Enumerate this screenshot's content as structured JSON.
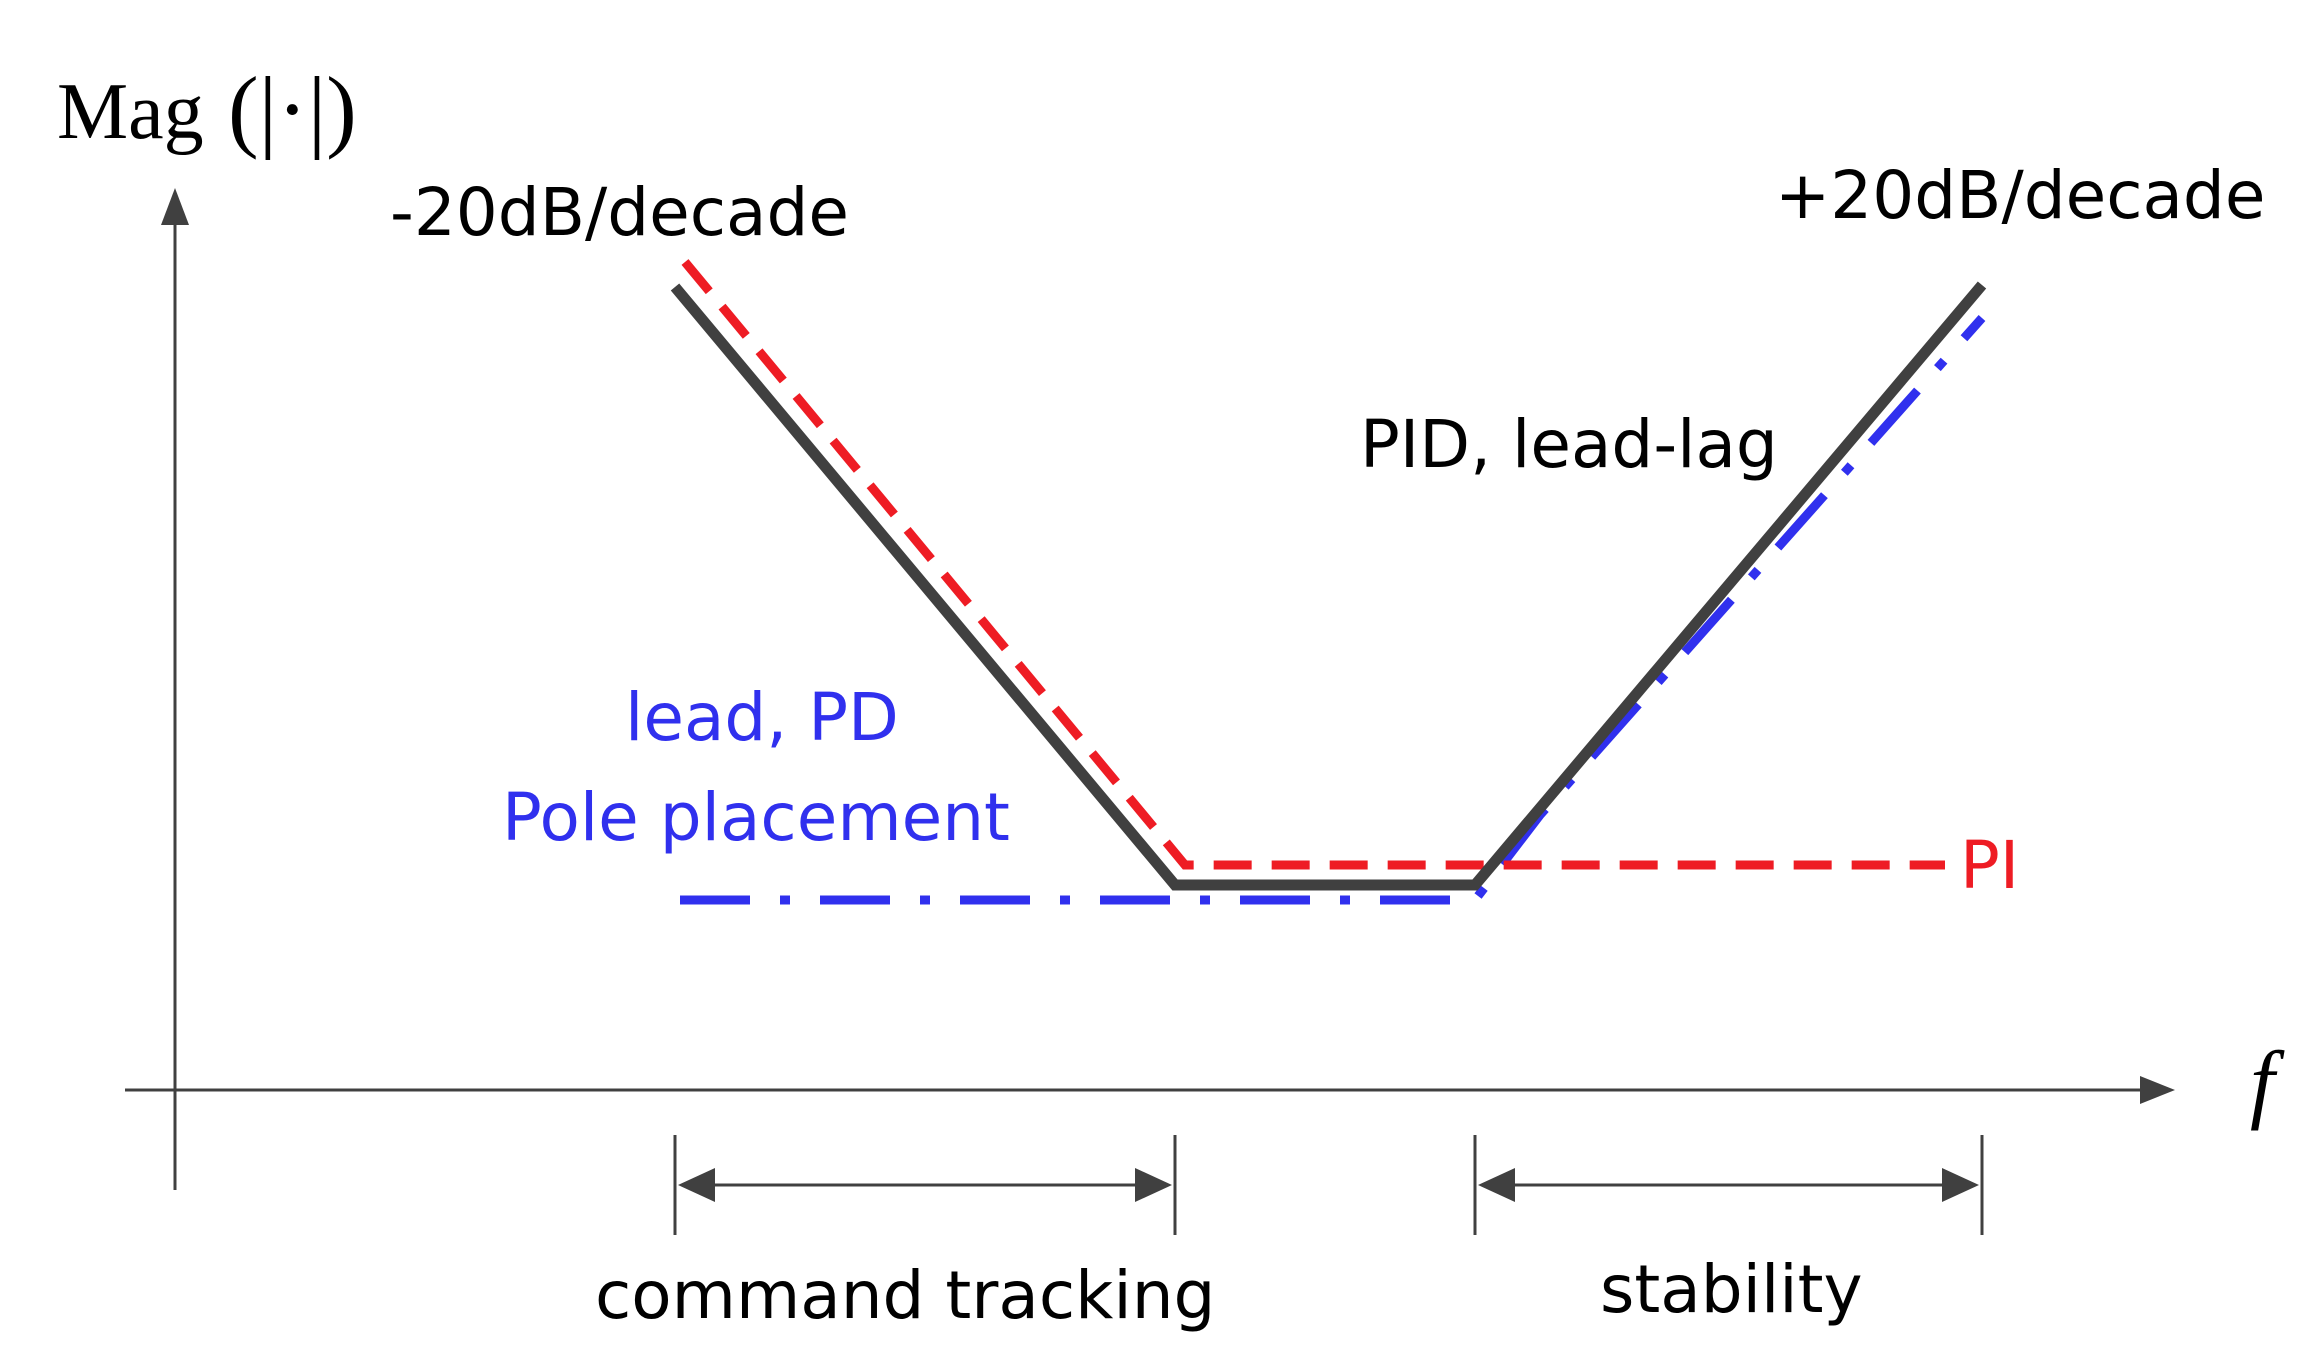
{
  "axes": {
    "y_label_text": "Mag",
    "y_label_symbol": "(|·|)",
    "x_label": "f"
  },
  "labels": {
    "slope_left": "-20dB/decade",
    "slope_right": "+20dB/decade",
    "pid": "PID, lead-lag",
    "lead_pd": "lead, PD",
    "pole_placement": "Pole placement",
    "pi": "PI"
  },
  "ranges": {
    "command_tracking": "command tracking",
    "stability": "stability"
  },
  "colors": {
    "axis": "#404040",
    "pid_curve": "#404040",
    "pi_curve": "#ee1c24",
    "pd_curve": "#3030ee",
    "text_dark": "#000000",
    "text_blue": "#3030ee",
    "text_red": "#ee1c24"
  }
}
